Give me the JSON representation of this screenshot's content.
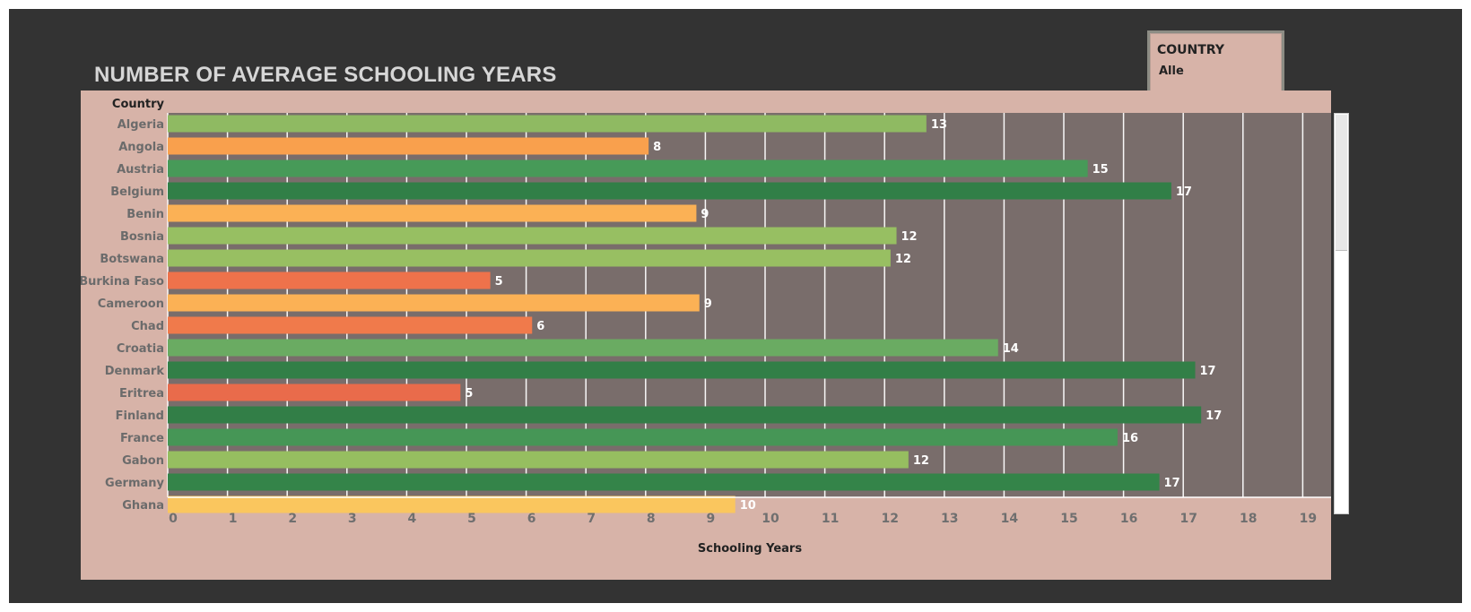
{
  "title": "NUMBER OF AVERAGE SCHOOLING YEARS",
  "filter": {
    "label": "COUNTRY",
    "value": "Alle"
  },
  "chart_data": {
    "type": "bar",
    "orientation": "horizontal",
    "category_header": "Country",
    "xlabel": "Schooling Years",
    "xlim": [
      0,
      19.5
    ],
    "xticks": [
      0,
      1,
      2,
      3,
      4,
      5,
      6,
      7,
      8,
      9,
      10,
      11,
      12,
      13,
      14,
      15,
      16,
      17,
      18,
      19
    ],
    "grid": true,
    "rows": [
      {
        "country": "Algeria",
        "value": 12.7,
        "label": "13",
        "color": "#8fba62"
      },
      {
        "country": "Angola",
        "value": 8.05,
        "label": "8",
        "color": "#f9a04d"
      },
      {
        "country": "Austria",
        "value": 15.4,
        "label": "15",
        "color": "#479a58"
      },
      {
        "country": "Belgium",
        "value": 16.8,
        "label": "17",
        "color": "#317f47"
      },
      {
        "country": "Benin",
        "value": 8.85,
        "label": "9",
        "color": "#fbb155"
      },
      {
        "country": "Bosnia",
        "value": 12.2,
        "label": "12",
        "color": "#97bf62"
      },
      {
        "country": "Botswana",
        "value": 12.1,
        "label": "12",
        "color": "#98bf62"
      },
      {
        "country": "Burkina Faso",
        "value": 5.4,
        "label": "5",
        "color": "#ee724b"
      },
      {
        "country": "Cameroon",
        "value": 8.9,
        "label": "9",
        "color": "#fbb155"
      },
      {
        "country": "Chad",
        "value": 6.1,
        "label": "6",
        "color": "#f07a4b"
      },
      {
        "country": "Croatia",
        "value": 13.9,
        "label": "14",
        "color": "#6aab62"
      },
      {
        "country": "Denmark",
        "value": 17.2,
        "label": "17",
        "color": "#327f47"
      },
      {
        "country": "Eritrea",
        "value": 4.9,
        "label": "5",
        "color": "#e96b4b"
      },
      {
        "country": "Finland",
        "value": 17.3,
        "label": "17",
        "color": "#327e47"
      },
      {
        "country": "France",
        "value": 15.9,
        "label": "16",
        "color": "#469656"
      },
      {
        "country": "Gabon",
        "value": 12.4,
        "label": "12",
        "color": "#96be60"
      },
      {
        "country": "Germany",
        "value": 16.6,
        "label": "17",
        "color": "#348449"
      },
      {
        "country": "Ghana",
        "value": 9.5,
        "label": "10",
        "color": "#fac65e"
      }
    ]
  }
}
